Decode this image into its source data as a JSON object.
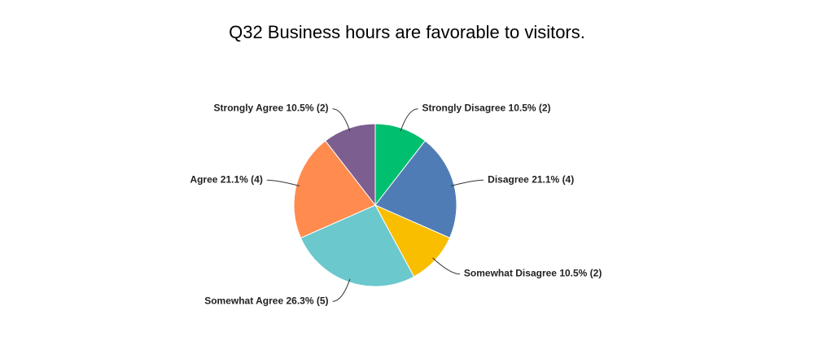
{
  "chart_data": {
    "type": "pie",
    "title": "Q32 Business hours are favorable to visitors.",
    "categories": [
      "Strongly Disagree",
      "Disagree",
      "Somewhat Disagree",
      "Somewhat Agree",
      "Agree",
      "Strongly Agree"
    ],
    "values": [
      10.5,
      21.1,
      10.5,
      26.3,
      21.1,
      10.5
    ],
    "value_labels": [
      "10.5% (2)",
      "21.1% (4)",
      "10.5% (2)",
      "26.3% (5)",
      "21.1% (4)",
      "10.5% (2)"
    ],
    "colors": [
      "#00bf6f",
      "#507cb6",
      "#f9be00",
      "#6bc8cd",
      "#ff8b4f",
      "#7d5e90"
    ]
  }
}
